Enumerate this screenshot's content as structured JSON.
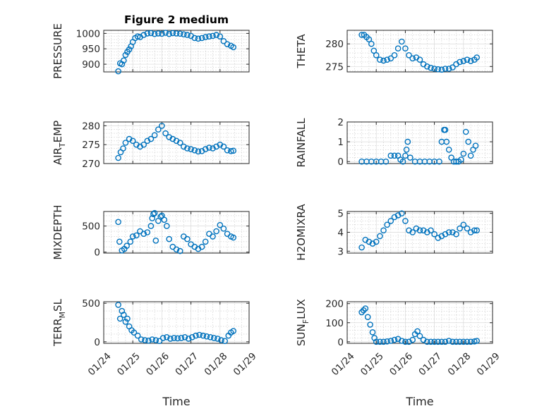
{
  "chart_data": [
    {
      "type": "scatter",
      "panel": "pressure",
      "title": "Figure 2 medium",
      "ylabel": "PRESSURE",
      "xlim": [
        "01/24",
        "01/29"
      ],
      "ylim": [
        875,
        1010
      ],
      "yticks": [
        900,
        950,
        1000
      ],
      "xtick_labels": [],
      "xlabel": "",
      "marker_color": "#0072bd",
      "x": [
        "01/24 12:00",
        "01/24 13:30",
        "01/24 15:00",
        "01/24 16:30",
        "01/24 18:00",
        "01/24 19:30",
        "01/24 21:00",
        "01/24 22:30",
        "01/25 00:00",
        "01/25 02:00",
        "01/25 04:00",
        "01/25 06:00",
        "01/25 09:00",
        "01/25 12:00",
        "01/25 15:00",
        "01/25 18:00",
        "01/25 21:00",
        "01/26 00:00",
        "01/26 03:00",
        "01/26 06:00",
        "01/26 09:00",
        "01/26 12:00",
        "01/26 15:00",
        "01/26 18:00",
        "01/26 21:00",
        "01/27 00:00",
        "01/27 03:00",
        "01/27 06:00",
        "01/27 09:00",
        "01/27 12:00",
        "01/27 15:00",
        "01/27 18:00",
        "01/27 21:00",
        "01/28 00:00",
        "01/28 03:00",
        "01/28 06:00",
        "01/28 09:00",
        "01/28 11:00"
      ],
      "y": [
        877,
        903,
        900,
        912,
        930,
        940,
        948,
        958,
        972,
        985,
        990,
        988,
        995,
        1000,
        1001,
        998,
        1000,
        999,
        1002,
        998,
        1001,
        1000,
        999,
        997,
        995,
        992,
        985,
        983,
        985,
        988,
        990,
        992,
        995,
        990,
        975,
        965,
        960,
        955
      ]
    },
    {
      "type": "scatter",
      "panel": "theta",
      "ylabel": "THETA",
      "xlim": [
        "01/24",
        "01/29"
      ],
      "ylim": [
        273.8,
        283
      ],
      "yticks": [
        275,
        280
      ],
      "xtick_labels": [],
      "xlabel": "",
      "marker_color": "#0072bd",
      "x": [
        "01/24 12:00",
        "01/24 14:00",
        "01/24 16:00",
        "01/24 18:00",
        "01/24 20:00",
        "01/24 22:00",
        "01/25 00:00",
        "01/25 03:00",
        "01/25 06:00",
        "01/25 09:00",
        "01/25 12:00",
        "01/25 15:00",
        "01/25 18:00",
        "01/25 21:00",
        "01/26 00:00",
        "01/26 03:00",
        "01/26 06:00",
        "01/26 09:00",
        "01/26 12:00",
        "01/26 15:00",
        "01/26 18:00",
        "01/26 21:00",
        "01/27 00:00",
        "01/27 03:00",
        "01/27 06:00",
        "01/27 09:00",
        "01/27 12:00",
        "01/27 15:00",
        "01/27 18:00",
        "01/27 21:00",
        "01/28 00:00",
        "01/28 03:00",
        "01/28 06:00",
        "01/28 09:00",
        "01/28 11:00"
      ],
      "y": [
        282,
        282,
        281.5,
        281,
        280,
        278.5,
        277.5,
        276.5,
        276.3,
        276.5,
        276.8,
        277.5,
        279,
        280.5,
        279,
        277.5,
        276.8,
        277,
        276.5,
        275.5,
        275,
        274.7,
        274.5,
        274.4,
        274.3,
        274.5,
        274.5,
        274.8,
        275.5,
        276,
        276.2,
        276.5,
        276.2,
        276.5,
        277
      ]
    },
    {
      "type": "scatter",
      "panel": "air_temp",
      "ylabel": "AIR_TEMP",
      "xlim": [
        "01/24",
        "01/29"
      ],
      "ylim": [
        270,
        281
      ],
      "yticks": [
        270,
        275,
        280
      ],
      "xtick_labels": [],
      "xlabel": "",
      "marker_color": "#0072bd",
      "x": [
        "01/24 12:00",
        "01/24 14:00",
        "01/24 16:00",
        "01/24 18:00",
        "01/24 21:00",
        "01/25 00:00",
        "01/25 03:00",
        "01/25 06:00",
        "01/25 09:00",
        "01/25 12:00",
        "01/25 15:00",
        "01/25 18:00",
        "01/25 21:00",
        "01/26 00:00",
        "01/26 03:00",
        "01/26 06:00",
        "01/26 09:00",
        "01/26 12:00",
        "01/26 15:00",
        "01/26 18:00",
        "01/26 21:00",
        "01/27 00:00",
        "01/27 03:00",
        "01/27 06:00",
        "01/27 09:00",
        "01/27 12:00",
        "01/27 15:00",
        "01/27 18:00",
        "01/27 21:00",
        "01/28 00:00",
        "01/28 03:00",
        "01/28 06:00",
        "01/28 09:00",
        "01/28 11:00"
      ],
      "y": [
        271.5,
        273,
        274,
        275.5,
        276.5,
        276,
        275,
        274.5,
        275,
        276,
        276.5,
        277.5,
        279,
        280,
        278,
        277,
        276.5,
        276,
        275.5,
        274.5,
        274,
        273.8,
        273.5,
        273.2,
        273.3,
        273.8,
        274.2,
        274,
        274.5,
        275,
        274.5,
        273.5,
        273.3,
        273.4
      ]
    },
    {
      "type": "scatter",
      "panel": "rainfall",
      "ylabel": "RAINFALL",
      "xlim": [
        "01/24",
        "01/29"
      ],
      "ylim": [
        -0.1,
        2
      ],
      "yticks": [
        0,
        1,
        2
      ],
      "xtick_labels": [],
      "xlabel": "",
      "marker_color": "#0072bd",
      "x": [
        "01/24 12:00",
        "01/24 16:00",
        "01/24 20:00",
        "01/25 00:00",
        "01/25 04:00",
        "01/25 08:00",
        "01/25 12:00",
        "01/25 15:00",
        "01/25 18:00",
        "01/25 20:00",
        "01/25 22:00",
        "01/26 00:00",
        "01/26 01:00",
        "01/26 02:00",
        "01/26 04:00",
        "01/26 08:00",
        "01/26 12:00",
        "01/26 16:00",
        "01/26 20:00",
        "01/27 00:00",
        "01/27 04:00",
        "01/27 06:00",
        "01/27 08:00",
        "01/27 09:00",
        "01/27 10:00",
        "01/27 12:00",
        "01/27 14:00",
        "01/27 16:00",
        "01/27 18:00",
        "01/27 20:00",
        "01/27 22:00",
        "01/28 00:00",
        "01/28 02:00",
        "01/28 04:00",
        "01/28 06:00",
        "01/28 08:00",
        "01/28 10:00"
      ],
      "y": [
        0,
        0,
        0,
        0,
        0,
        0,
        0.3,
        0.3,
        0.3,
        0.1,
        0,
        0.3,
        0.6,
        1.0,
        0.2,
        0,
        0,
        0,
        0,
        0,
        0,
        1.0,
        1.6,
        1.6,
        1.0,
        0.6,
        0.2,
        0,
        0,
        0,
        0.1,
        0.4,
        1.5,
        1.0,
        0.3,
        0.6,
        0.8
      ]
    },
    {
      "type": "scatter",
      "panel": "mixdepth",
      "ylabel": "MIXDEPTH",
      "xlim": [
        "01/24",
        "01/29"
      ],
      "ylim": [
        -20,
        780
      ],
      "yticks": [
        0,
        500
      ],
      "xtick_labels": [],
      "xlabel": "",
      "marker_color": "#0072bd",
      "x": [
        "01/24 12:00",
        "01/24 13:00",
        "01/24 15:00",
        "01/24 17:00",
        "01/24 19:00",
        "01/24 22:00",
        "01/25 00:00",
        "01/25 03:00",
        "01/25 06:00",
        "01/25 09:00",
        "01/25 12:00",
        "01/25 15:00",
        "01/25 16:00",
        "01/25 17:00",
        "01/25 18:00",
        "01/25 19:00",
        "01/25 21:00",
        "01/25 23:00",
        "01/26 00:00",
        "01/26 02:00",
        "01/26 04:00",
        "01/26 06:00",
        "01/26 09:00",
        "01/26 12:00",
        "01/26 15:00",
        "01/26 18:00",
        "01/26 21:00",
        "01/27 00:00",
        "01/27 03:00",
        "01/27 06:00",
        "01/27 09:00",
        "01/27 12:00",
        "01/27 15:00",
        "01/27 18:00",
        "01/27 21:00",
        "01/28 00:00",
        "01/28 03:00",
        "01/28 06:00",
        "01/28 09:00",
        "01/28 11:00"
      ],
      "y": [
        580,
        200,
        30,
        60,
        120,
        200,
        300,
        320,
        400,
        350,
        380,
        500,
        650,
        730,
        750,
        220,
        600,
        680,
        700,
        620,
        500,
        250,
        100,
        50,
        20,
        300,
        250,
        150,
        100,
        60,
        100,
        200,
        350,
        300,
        400,
        520,
        450,
        350,
        300,
        280
      ]
    },
    {
      "type": "scatter",
      "panel": "h2omixra",
      "ylabel": "H2OMIXRA",
      "xlim": [
        "01/24",
        "01/29"
      ],
      "ylim": [
        2.9,
        5.1
      ],
      "yticks": [
        3,
        4,
        5
      ],
      "xtick_labels": [],
      "xlabel": "",
      "marker_color": "#0072bd",
      "x": [
        "01/24 12:00",
        "01/24 15:00",
        "01/24 18:00",
        "01/24 21:00",
        "01/25 00:00",
        "01/25 03:00",
        "01/25 06:00",
        "01/25 09:00",
        "01/25 12:00",
        "01/25 15:00",
        "01/25 18:00",
        "01/25 21:00",
        "01/26 00:00",
        "01/26 03:00",
        "01/26 06:00",
        "01/26 09:00",
        "01/26 12:00",
        "01/26 15:00",
        "01/26 18:00",
        "01/26 21:00",
        "01/27 00:00",
        "01/27 03:00",
        "01/27 06:00",
        "01/27 09:00",
        "01/27 12:00",
        "01/27 15:00",
        "01/27 18:00",
        "01/27 21:00",
        "01/28 00:00",
        "01/28 03:00",
        "01/28 06:00",
        "01/28 09:00",
        "01/28 11:00"
      ],
      "y": [
        3.2,
        3.6,
        3.5,
        3.4,
        3.5,
        3.8,
        4.1,
        4.4,
        4.6,
        4.8,
        4.9,
        5.0,
        4.6,
        4.1,
        4.0,
        4.2,
        4.1,
        4.1,
        4.0,
        4.1,
        3.9,
        3.7,
        3.8,
        3.9,
        4.0,
        4.0,
        3.9,
        4.2,
        4.4,
        4.2,
        4.0,
        4.1,
        4.1
      ]
    },
    {
      "type": "scatter",
      "panel": "terr_msl",
      "ylabel": "TERR_MSL",
      "xlim": [
        "01/24",
        "01/29"
      ],
      "ylim": [
        -20,
        520
      ],
      "yticks": [
        0,
        500
      ],
      "xtick_labels": [
        "01/24",
        "01/25",
        "01/26",
        "01/27",
        "01/28",
        "01/29"
      ],
      "xlabel": "Time",
      "marker_color": "#0072bd",
      "x": [
        "01/24 12:00",
        "01/24 13:30",
        "01/24 15:00",
        "01/24 16:30",
        "01/24 18:00",
        "01/24 19:30",
        "01/24 21:00",
        "01/24 23:00",
        "01/25 01:00",
        "01/25 04:00",
        "01/25 07:00",
        "01/25 10:00",
        "01/25 13:00",
        "01/25 16:00",
        "01/25 19:00",
        "01/25 22:00",
        "01/26 01:00",
        "01/26 04:00",
        "01/26 07:00",
        "01/26 10:00",
        "01/26 13:00",
        "01/26 16:00",
        "01/26 19:00",
        "01/26 22:00",
        "01/27 01:00",
        "01/27 04:00",
        "01/27 07:00",
        "01/27 10:00",
        "01/27 13:00",
        "01/27 16:00",
        "01/27 19:00",
        "01/27 22:00",
        "01/28 01:00",
        "01/28 04:00",
        "01/28 07:00",
        "01/28 09:00",
        "01/28 11:00"
      ],
      "y": [
        480,
        300,
        400,
        350,
        260,
        300,
        200,
        150,
        120,
        80,
        30,
        20,
        15,
        30,
        20,
        10,
        50,
        60,
        40,
        50,
        45,
        50,
        60,
        40,
        60,
        80,
        90,
        80,
        70,
        60,
        50,
        40,
        20,
        10,
        80,
        120,
        140
      ]
    },
    {
      "type": "scatter",
      "panel": "sun_flux",
      "ylabel": "SUN_FLUX",
      "xlim": [
        "01/24",
        "01/29"
      ],
      "ylim": [
        -8,
        210
      ],
      "yticks": [
        0,
        100,
        200
      ],
      "xtick_labels": [
        "01/24",
        "01/25",
        "01/26",
        "01/27",
        "01/28",
        "01/29"
      ],
      "xlabel": "Time",
      "marker_color": "#0072bd",
      "x": [
        "01/24 12:00",
        "01/24 13:30",
        "01/24 15:00",
        "01/24 17:00",
        "01/24 19:00",
        "01/24 21:00",
        "01/24 22:30",
        "01/25 00:00",
        "01/25 03:00",
        "01/25 06:00",
        "01/25 09:00",
        "01/25 12:00",
        "01/25 15:00",
        "01/25 18:00",
        "01/25 21:00",
        "01/26 00:00",
        "01/26 03:00",
        "01/26 06:00",
        "01/26 08:00",
        "01/26 10:00",
        "01/26 12:00",
        "01/26 15:00",
        "01/26 18:00",
        "01/26 21:00",
        "01/27 00:00",
        "01/27 03:00",
        "01/27 06:00",
        "01/27 09:00",
        "01/27 12:00",
        "01/27 15:00",
        "01/27 18:00",
        "01/27 21:00",
        "01/28 00:00",
        "01/28 03:00",
        "01/28 06:00",
        "01/28 09:00",
        "01/28 11:00"
      ],
      "y": [
        155,
        165,
        175,
        130,
        90,
        50,
        20,
        0,
        0,
        0,
        2,
        5,
        10,
        15,
        5,
        0,
        0,
        10,
        40,
        55,
        30,
        10,
        0,
        0,
        0,
        0,
        0,
        0,
        5,
        0,
        0,
        0,
        0,
        0,
        0,
        2,
        5
      ]
    }
  ]
}
